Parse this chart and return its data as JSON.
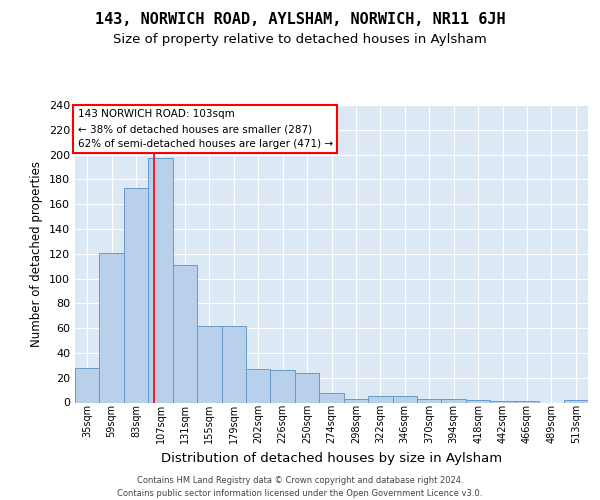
{
  "title": "143, NORWICH ROAD, AYLSHAM, NORWICH, NR11 6JH",
  "subtitle": "Size of property relative to detached houses in Aylsham",
  "xlabel": "Distribution of detached houses by size in Aylsham",
  "ylabel": "Number of detached properties",
  "bar_labels": [
    "35sqm",
    "59sqm",
    "83sqm",
    "107sqm",
    "131sqm",
    "155sqm",
    "179sqm",
    "202sqm",
    "226sqm",
    "250sqm",
    "274sqm",
    "298sqm",
    "322sqm",
    "346sqm",
    "370sqm",
    "394sqm",
    "418sqm",
    "442sqm",
    "466sqm",
    "489sqm",
    "513sqm"
  ],
  "bar_values": [
    28,
    121,
    173,
    197,
    111,
    62,
    62,
    27,
    26,
    24,
    8,
    3,
    5,
    5,
    3,
    3,
    2,
    1,
    1,
    0,
    2
  ],
  "bar_color": "#b8d0ea",
  "bar_edgecolor": "#6699cc",
  "bar_linewidth": 0.7,
  "vline_x": 2.75,
  "vline_color": "red",
  "vline_linewidth": 1.2,
  "annotation_text": "143 NORWICH ROAD: 103sqm\n← 38% of detached houses are smaller (287)\n62% of semi-detached houses are larger (471) →",
  "annotation_box_color": "white",
  "annotation_box_edgecolor": "red",
  "ylim_max": 240,
  "ytick_step": 20,
  "background_color": "#dce9f5",
  "grid_color": "white",
  "footer_line1": "Contains HM Land Registry data © Crown copyright and database right 2024.",
  "footer_line2": "Contains public sector information licensed under the Open Government Licence v3.0."
}
